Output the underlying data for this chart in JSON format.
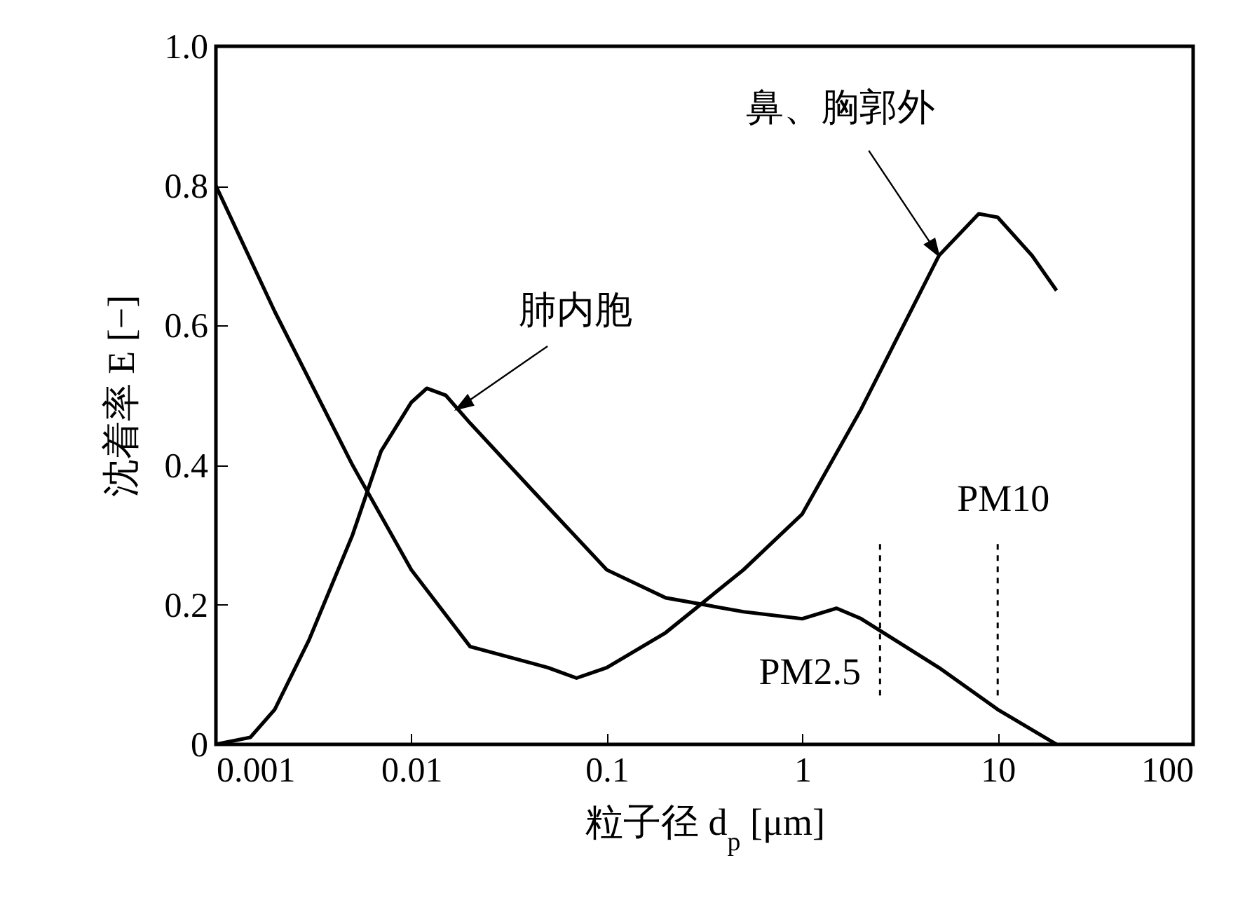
{
  "chart_data": {
    "type": "line",
    "xlabel": "粒子径 d$_{p}$ [μm]",
    "ylabel": "沈着率 E [−]",
    "log": "x",
    "xlim": [
      0.001,
      100
    ],
    "xticks": [
      0.001,
      0.01,
      0.1,
      1,
      10,
      100
    ],
    "ylim": [
      0,
      1
    ],
    "yticks": [
      0,
      0.2,
      0.4,
      0.6,
      0.8,
      {
        "value": 1,
        "label": "1.0"
      }
    ],
    "grid": false,
    "marker": "none",
    "series": [
      {
        "color": "#000000",
        "line_style": "solid",
        "x": [
          0.001,
          0.002,
          0.005,
          0.01,
          0.02,
          0.05,
          0.07,
          0.1,
          0.2,
          0.5,
          1,
          2,
          5,
          8,
          10,
          15,
          20
        ],
        "values": [
          0.8,
          0.62,
          0.4,
          0.25,
          0.14,
          0.11,
          0.095,
          0.11,
          0.16,
          0.25,
          0.33,
          0.48,
          0.7,
          0.76,
          0.755,
          0.7,
          0.65
        ]
      },
      {
        "color": "#000000",
        "line_style": "solid",
        "x": [
          0.001,
          0.0015,
          0.002,
          0.003,
          0.005,
          0.007,
          0.01,
          0.012,
          0.015,
          0.02,
          0.05,
          0.1,
          0.2,
          0.5,
          1,
          1.5,
          2,
          5,
          10,
          20
        ],
        "values": [
          0,
          0.01,
          0.05,
          0.15,
          0.3,
          0.42,
          0.49,
          0.51,
          0.5,
          0.46,
          0.34,
          0.25,
          0.21,
          0.19,
          0.18,
          0.195,
          0.18,
          0.11,
          0.05,
          0
        ]
      },
      {
        "color": "#000000",
        "line_style": "dashed",
        "x": [
          2.5,
          2.5
        ],
        "values": [
          0.07,
          0.29
        ]
      },
      {
        "color": "#000000",
        "line_style": "dashed",
        "x": [
          10,
          10
        ],
        "values": [
          0.07,
          0.29
        ]
      }
    ],
    "annotations": [
      {
        "text": "肺内胞",
        "x": 0.017,
        "y": 0.48
      },
      {
        "text": "鼻、胸郭外",
        "x": 5,
        "y": 0.7
      },
      {
        "text": "PM2.5",
        "x": 2.5,
        "y": 0.07
      },
      {
        "text": "PM10",
        "x": 10,
        "y": 0.29
      }
    ]
  }
}
